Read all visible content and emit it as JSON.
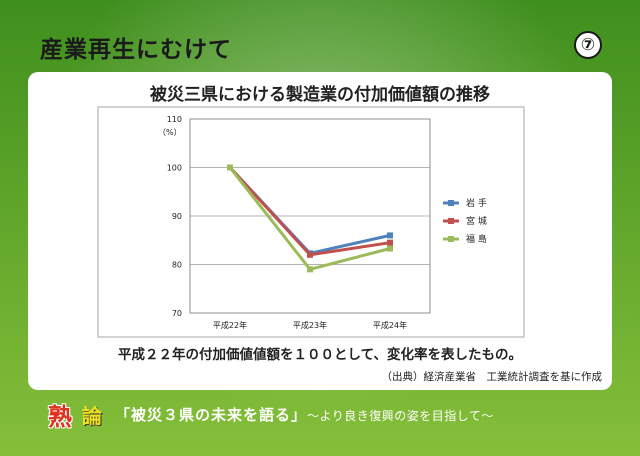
{
  "header": {
    "title": "産業再生にむけて",
    "slide_number": "⑦"
  },
  "chart_title": "被災三県における製造業の付加価値額の推移",
  "caption": "平成２２年の付加価値値額を１００として、変化率を表したもの。",
  "source": "（出典）経済産業省　工業統計調査を基に作成",
  "footer": {
    "k1": "熟",
    "k2": "論",
    "text": "「被災３県の未来を語る」",
    "sub": "〜より良き復興の姿を目指して〜"
  },
  "chart_data": {
    "type": "line",
    "ylabel": "（%）",
    "categories": [
      "平成22年",
      "平成23年",
      "平成24年"
    ],
    "ylim": [
      70,
      110
    ],
    "yticks": [
      70,
      80,
      90,
      100,
      110
    ],
    "legend_position": "right",
    "series": [
      {
        "name": "岩 手",
        "color": "#4f81bd",
        "values": [
          100,
          82.3,
          86.0
        ]
      },
      {
        "name": "宮 城",
        "color": "#c0504d",
        "values": [
          100,
          82.0,
          84.5
        ]
      },
      {
        "name": "福 島",
        "color": "#9bbb59",
        "values": [
          100,
          79.0,
          83.3
        ]
      }
    ]
  }
}
